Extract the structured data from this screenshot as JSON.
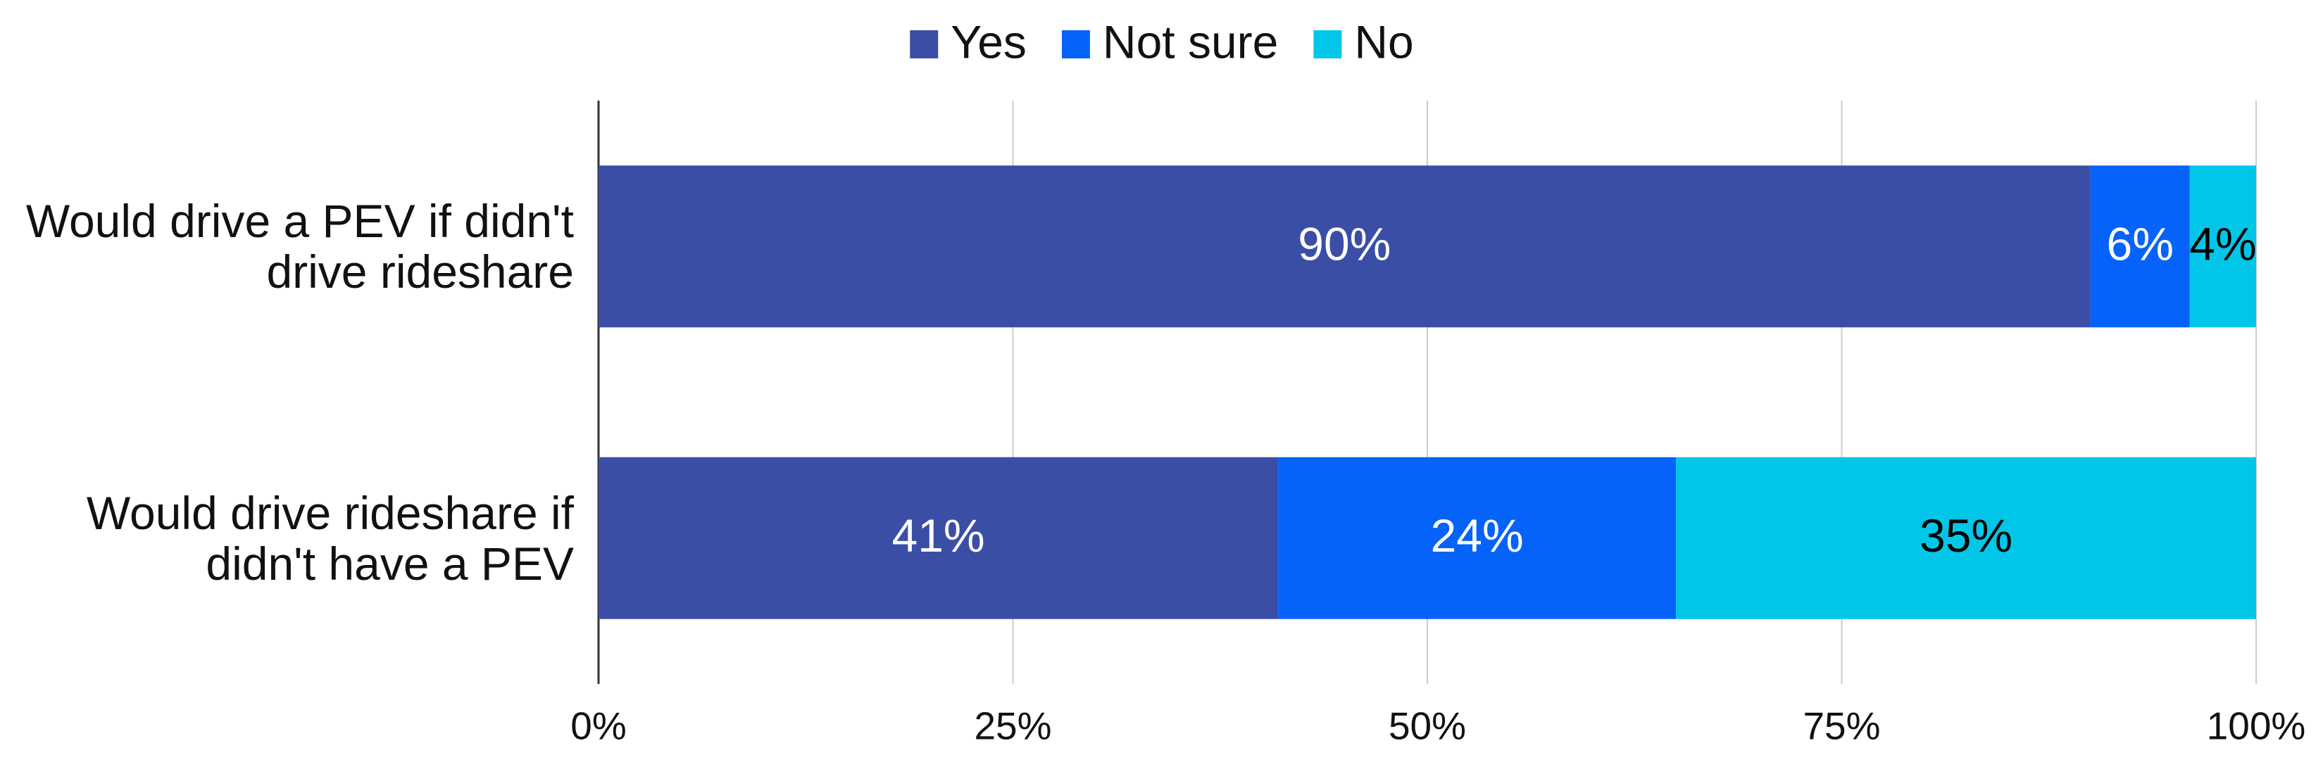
{
  "chart_data": {
    "type": "stacked-bar-horizontal",
    "categories": [
      "Would drive a PEV if didn't drive rideshare",
      "Would drive rideshare if didn't have a PEV"
    ],
    "series": [
      {
        "name": "Yes",
        "color": "#3b4ea6",
        "label_color": "#ffffff",
        "values": [
          90,
          41
        ],
        "value_labels": [
          "90%",
          "41%"
        ]
      },
      {
        "name": "Not sure",
        "color": "#0563fa",
        "label_color": "#ffffff",
        "values": [
          6,
          24
        ],
        "value_labels": [
          "6%",
          "24%"
        ]
      },
      {
        "name": "No",
        "color": "#02c6e8",
        "label_color": "#000000",
        "values": [
          4,
          35
        ],
        "value_labels": [
          "4%",
          "35%"
        ]
      }
    ],
    "xlim": [
      0,
      100
    ],
    "xticks": [
      {
        "value": 0,
        "label": "0%"
      },
      {
        "value": 25,
        "label": "25%"
      },
      {
        "value": 50,
        "label": "50%"
      },
      {
        "value": 75,
        "label": "75%"
      },
      {
        "value": 100,
        "label": "100%"
      }
    ],
    "grid": true,
    "legend": "top"
  }
}
